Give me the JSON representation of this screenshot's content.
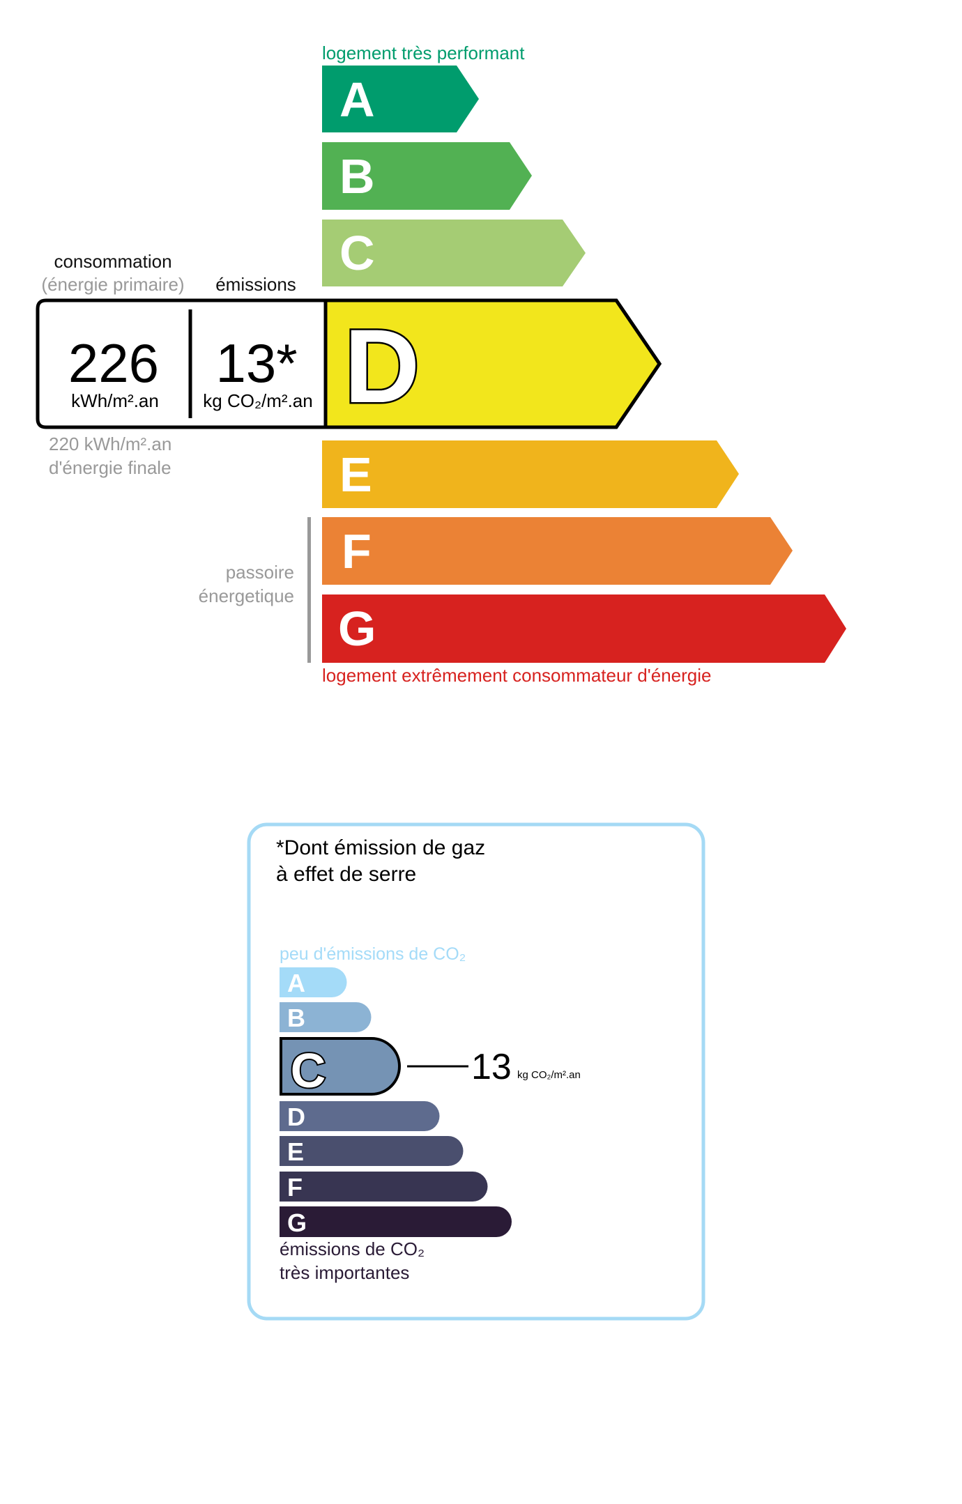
{
  "energy_label": {
    "top_label": "logement très performant",
    "bottom_label": "logement extrêmement consommateur d'énergie",
    "passoire_line1": "passoire",
    "passoire_line2": "énergetique",
    "classes": [
      {
        "letter": "A",
        "color": "#009c6d"
      },
      {
        "letter": "B",
        "color": "#52b153"
      },
      {
        "letter": "C",
        "color": "#a5cc74"
      },
      {
        "letter": "D",
        "color": "#f2e61c"
      },
      {
        "letter": "E",
        "color": "#f0b41c"
      },
      {
        "letter": "F",
        "color": "#eb8235"
      },
      {
        "letter": "G",
        "color": "#d7221f"
      }
    ],
    "current_class": "D",
    "consumption_header": "consommation",
    "consumption_subheader": "(énergie primaire)",
    "emissions_header": "émissions",
    "consumption_value": "226",
    "consumption_unit": "kWh/m².an",
    "emissions_value": "13*",
    "emissions_unit": "kg CO₂/m².an",
    "final_energy_line1": "220 kWh/m².an",
    "final_energy_line2": "d'énergie finale",
    "top_label_color": "#009c6d",
    "bottom_label_color": "#d7221f"
  },
  "ges_label": {
    "title_line1": "*Dont émission de gaz",
    "title_line2": "à effet de serre",
    "top_label": "peu d'émissions de CO₂",
    "bottom_label_line1": "émissions de CO₂",
    "bottom_label_line2": "très importantes",
    "classes": [
      {
        "letter": "A",
        "color": "#a4dbf8"
      },
      {
        "letter": "B",
        "color": "#8cb3d4"
      },
      {
        "letter": "C",
        "color": "#7593b4"
      },
      {
        "letter": "D",
        "color": "#5e6b8e"
      },
      {
        "letter": "E",
        "color": "#4a4f6e"
      },
      {
        "letter": "F",
        "color": "#383552"
      },
      {
        "letter": "G",
        "color": "#2a1b36"
      }
    ],
    "current_class": "C",
    "value": "13",
    "unit": "kg CO₂/m².an",
    "border_color": "#a5daf5"
  }
}
